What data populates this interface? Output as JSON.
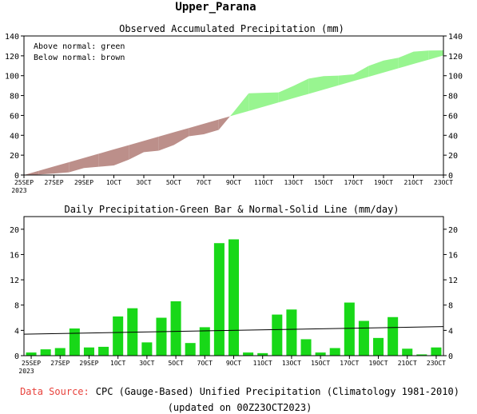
{
  "header": {
    "title": "Upper_Parana"
  },
  "chart_data": [
    {
      "type": "area",
      "title": "Observed Accumulated Precipitation (mm)",
      "legend_lines": [
        "Above normal: green",
        "Below normal: brown"
      ],
      "legend_placement": "top-left",
      "ylim": [
        0,
        140
      ],
      "yticks": [
        0,
        20,
        40,
        60,
        80,
        100,
        120,
        140
      ],
      "x_days": 29,
      "xticks": [
        {
          "day": 0,
          "label": "25SEP",
          "sub": "2023"
        },
        {
          "day": 2,
          "label": "27SEP"
        },
        {
          "day": 4,
          "label": "29SEP"
        },
        {
          "day": 6,
          "label": "1OCT"
        },
        {
          "day": 8,
          "label": "3OCT"
        },
        {
          "day": 10,
          "label": "5OCT"
        },
        {
          "day": 12,
          "label": "7OCT"
        },
        {
          "day": 14,
          "label": "9OCT"
        },
        {
          "day": 16,
          "label": "11OCT"
        },
        {
          "day": 18,
          "label": "13OCT"
        },
        {
          "day": 20,
          "label": "15OCT"
        },
        {
          "day": 22,
          "label": "17OCT"
        },
        {
          "day": 24,
          "label": "19OCT"
        },
        {
          "day": 26,
          "label": "21OCT"
        },
        {
          "day": 28,
          "label": "23OCT"
        }
      ],
      "series": [
        {
          "values": [
            0,
            0.5,
            1.5,
            2.7,
            7,
            8.3,
            9.7,
            15.5,
            23,
            24.5,
            30.2,
            39,
            41,
            45.5,
            63.6,
            82.3,
            82.8,
            83.2,
            89.8,
            97.1,
            99.6,
            100.1,
            101.4,
            109.8,
            115.3,
            118.1,
            124.2,
            125.3,
            125.5
          ]
        },
        {
          "values": [
            0,
            4.3,
            8.6,
            12.9,
            17.2,
            21.5,
            25.8,
            30.1,
            34.4,
            38.7,
            43,
            47.3,
            51.6,
            55.9,
            60.2,
            64.5,
            68.8,
            73.1,
            77.4,
            81.7,
            86,
            90.3,
            94.6,
            98.9,
            103.2,
            107.5,
            111.8,
            116.1,
            120.4
          ]
        }
      ],
      "colors": {
        "above": "#98f590",
        "below": "#bc8f8a"
      }
    },
    {
      "type": "bar",
      "title": "Daily Precipitation-Green Bar & Normal-Solid Line (mm/day)",
      "ylim": [
        0,
        22
      ],
      "yticks": [
        0,
        4,
        8,
        12,
        16,
        20
      ],
      "x_days": 29,
      "values": [
        0.5,
        1,
        1.2,
        4.3,
        1.3,
        1.4,
        6.2,
        7.5,
        2.1,
        6,
        8.6,
        2,
        4.5,
        17.8,
        18.4,
        0.5,
        0.4,
        6.5,
        7.3,
        2.6,
        0.5,
        1.2,
        8.4,
        5.5,
        2.8,
        6.1,
        1.1,
        0.2,
        1.3
      ],
      "normal_line": [
        3.4,
        4.6
      ],
      "colors": {
        "bar": "#18d818",
        "normal": "#000000"
      }
    }
  ],
  "footer": {
    "source_label": "Data Source:",
    "source_text": "CPC (Gauge-Based) Unified Precipitation (Climatology 1981-2010)",
    "updated": "(updated on 00Z23OCT2023)"
  }
}
